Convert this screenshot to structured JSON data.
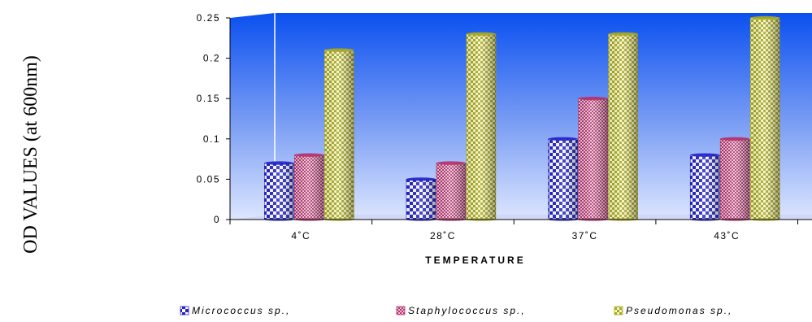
{
  "chart_data": {
    "type": "bar",
    "categories": [
      "4˚C",
      "28˚C",
      "37˚C",
      "43˚C"
    ],
    "series": [
      {
        "name": "Micrococcus sp.,",
        "values": [
          0.07,
          0.05,
          0.1,
          0.08
        ]
      },
      {
        "name": "Staphylococcus sp.,",
        "values": [
          0.08,
          0.07,
          0.15,
          0.1
        ]
      },
      {
        "name": "Pseudomonas sp.,",
        "values": [
          0.21,
          0.23,
          0.23,
          0.25
        ]
      }
    ],
    "y_ticks": [
      "0",
      "0.05",
      "0.1",
      "0.15",
      "0.2",
      "0.25"
    ],
    "xlabel": "TEMPERATURE",
    "ylabel": "OD VALUES (at 600nm)",
    "ylim": [
      0,
      0.25
    ],
    "legend_position": "bottom",
    "colors": {
      "series": [
        "#2323c8",
        "#b4326e",
        "#a8a820"
      ],
      "wall_top": "#0a50f0",
      "wall_bottom": "#dde6ff"
    }
  }
}
